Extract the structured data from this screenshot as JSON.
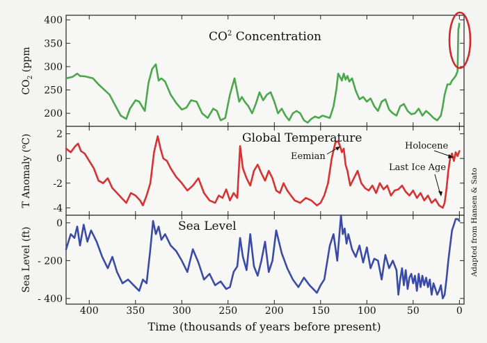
{
  "chart_data": {
    "type": "line",
    "xlabel": "Time (thousands of years before present)",
    "x_ticks": [
      400,
      350,
      300,
      250,
      200,
      150,
      100,
      50,
      0
    ],
    "xlim": [
      425,
      -5
    ],
    "credit": "Adapted from Hansen & Sato",
    "panels": [
      {
        "name": "co2",
        "title_main": "CO",
        "title_sup": "2",
        "title_rest": " Concentration",
        "ylabel_main": "CO",
        "ylabel_sub": "2",
        "ylabel_rest": " (ppm",
        "ylim": [
          172,
          410
        ],
        "y_ticks": [
          200,
          250,
          300,
          350,
          400
        ],
        "y_tick_labels": [
          "200",
          "250",
          "300",
          "350",
          "400"
        ],
        "color": "#4aa84a",
        "x": [
          425,
          418,
          413,
          410,
          404,
          396,
          390,
          384,
          378,
          374,
          366,
          360,
          356,
          350,
          346,
          340,
          336,
          332,
          328,
          325,
          322,
          318,
          312,
          306,
          300,
          295,
          290,
          284,
          278,
          272,
          266,
          262,
          258,
          253,
          248,
          243,
          238,
          235,
          232,
          228,
          224,
          220,
          216,
          212,
          208,
          204,
          200,
          196,
          192,
          188,
          184,
          180,
          176,
          172,
          168,
          164,
          160,
          156,
          152,
          148,
          140,
          136,
          133,
          131,
          129,
          127,
          125,
          123,
          121,
          119,
          116,
          112,
          108,
          104,
          100,
          96,
          92,
          88,
          84,
          80,
          76,
          72,
          68,
          64,
          60,
          56,
          52,
          48,
          44,
          40,
          36,
          32,
          28,
          24,
          20,
          18,
          16,
          13,
          10,
          8,
          6,
          4,
          2,
          1.2,
          0.6,
          0.2
        ],
        "y": [
          275,
          278,
          285,
          280,
          279,
          275,
          262,
          251,
          240,
          225,
          195,
          188,
          210,
          228,
          225,
          205,
          265,
          295,
          305,
          270,
          275,
          268,
          240,
          222,
          208,
          212,
          228,
          225,
          200,
          190,
          210,
          205,
          185,
          190,
          240,
          275,
          225,
          235,
          225,
          215,
          200,
          220,
          245,
          228,
          240,
          245,
          225,
          200,
          210,
          195,
          185,
          200,
          205,
          200,
          185,
          180,
          188,
          193,
          190,
          195,
          190,
          215,
          250,
          285,
          278,
          270,
          285,
          272,
          280,
          268,
          275,
          248,
          230,
          235,
          225,
          232,
          215,
          205,
          225,
          230,
          208,
          200,
          195,
          215,
          220,
          205,
          198,
          200,
          210,
          195,
          205,
          198,
          190,
          185,
          195,
          215,
          240,
          262,
          262,
          270,
          275,
          280,
          290,
          380,
          385,
          392
        ]
      },
      {
        "name": "temperature",
        "title": "Global Temperature",
        "ylabel_main": "T Anomaly (",
        "ylabel_sup": "o",
        "ylabel_rest": "C)",
        "ylim": [
          -4.6,
          2.6
        ],
        "y_ticks": [
          -4,
          -2,
          0,
          2
        ],
        "y_tick_labels": [
          "-4",
          "-2",
          "0",
          "2"
        ],
        "color": "#d93030",
        "annotations": [
          "Eemian",
          "Holocene",
          "Last Ice Age"
        ],
        "x": [
          425,
          420,
          415,
          412,
          409,
          405,
          400,
          395,
          390,
          385,
          380,
          375,
          370,
          365,
          360,
          355,
          350,
          345,
          342,
          338,
          334,
          330,
          326,
          323,
          320,
          316,
          312,
          306,
          300,
          294,
          288,
          282,
          276,
          270,
          264,
          260,
          256,
          252,
          248,
          244,
          240,
          237,
          234,
          230,
          226,
          222,
          218,
          214,
          210,
          206,
          202,
          198,
          194,
          190,
          186,
          182,
          178,
          172,
          166,
          160,
          154,
          150,
          146,
          142,
          138,
          134,
          131,
          129,
          127,
          125,
          123,
          121,
          118,
          114,
          110,
          106,
          102,
          98,
          94,
          90,
          86,
          82,
          78,
          74,
          70,
          66,
          62,
          58,
          54,
          50,
          46,
          42,
          38,
          34,
          30,
          26,
          22,
          18,
          16,
          14,
          12,
          10,
          8,
          6,
          4,
          2,
          0
        ],
        "y": [
          0.8,
          0.5,
          1.0,
          1.2,
          0.6,
          0.4,
          -0.2,
          -0.8,
          -1.8,
          -2.0,
          -1.6,
          -2.4,
          -2.8,
          -3.2,
          -3.6,
          -2.8,
          -3.0,
          -3.4,
          -3.8,
          -3.0,
          -2.0,
          0.5,
          1.8,
          0.8,
          0.0,
          -0.2,
          -0.8,
          -1.5,
          -2.0,
          -2.6,
          -2.2,
          -1.6,
          -2.8,
          -3.4,
          -3.6,
          -3.0,
          -3.2,
          -2.5,
          -3.4,
          -2.8,
          -3.2,
          1.0,
          -0.8,
          -1.6,
          -2.2,
          -1.0,
          -0.5,
          -1.2,
          -1.8,
          -1.0,
          -1.6,
          -2.6,
          -2.8,
          -2.0,
          -2.6,
          -3.0,
          -3.4,
          -3.6,
          -3.2,
          -3.4,
          -3.8,
          -3.6,
          -3.0,
          -2.0,
          0.0,
          1.3,
          1.4,
          1.0,
          0.5,
          0.8,
          -0.5,
          -1.0,
          -2.2,
          -1.6,
          -1.0,
          -2.0,
          -2.4,
          -2.6,
          -2.2,
          -2.8,
          -2.0,
          -2.5,
          -2.2,
          -3.0,
          -2.6,
          -2.5,
          -2.2,
          -2.7,
          -3.0,
          -2.6,
          -3.2,
          -2.8,
          -3.4,
          -3.0,
          -3.6,
          -3.3,
          -3.8,
          -4.0,
          -3.6,
          -2.5,
          -1.0,
          0.0,
          0.4,
          -0.2,
          0.5,
          0.2,
          0.6
        ]
      },
      {
        "name": "sea_level",
        "title": "Sea Level",
        "ylabel_main": "Sea Level (ft)",
        "ylim": [
          -430,
          40
        ],
        "y_ticks": [
          -400,
          -200,
          0
        ],
        "y_tick_labels": [
          "- 400",
          "- 200",
          "0"
        ],
        "color": "#3a4aa8",
        "x": [
          425,
          420,
          416,
          413,
          410,
          406,
          402,
          398,
          392,
          386,
          380,
          375,
          370,
          364,
          358,
          352,
          346,
          342,
          338,
          334,
          331,
          328,
          325,
          322,
          318,
          312,
          306,
          300,
          294,
          288,
          282,
          276,
          270,
          264,
          258,
          252,
          248,
          244,
          240,
          237,
          234,
          230,
          226,
          222,
          218,
          214,
          210,
          206,
          202,
          198,
          192,
          186,
          180,
          174,
          168,
          162,
          158,
          154,
          150,
          146,
          140,
          136,
          132,
          128,
          126,
          124,
          122,
          120,
          116,
          112,
          108,
          104,
          100,
          96,
          92,
          88,
          84,
          80,
          76,
          72,
          68,
          66,
          64,
          62,
          60,
          58,
          56,
          54,
          52,
          50,
          48,
          46,
          44,
          42,
          40,
          38,
          36,
          34,
          32,
          30,
          28,
          26,
          24,
          22,
          20,
          18,
          16,
          14,
          12,
          10,
          8,
          6,
          4,
          2,
          0
        ],
        "y": [
          -140,
          -60,
          -80,
          -20,
          -120,
          -10,
          -100,
          -40,
          -100,
          -180,
          -240,
          -180,
          -260,
          -320,
          -300,
          -330,
          -360,
          -300,
          -320,
          -140,
          10,
          -60,
          -20,
          -90,
          -60,
          -120,
          -150,
          -200,
          -260,
          -140,
          -210,
          -300,
          -270,
          -330,
          -310,
          -350,
          -340,
          -260,
          -230,
          -80,
          -180,
          -250,
          -60,
          -230,
          -280,
          -200,
          -100,
          -260,
          -200,
          -40,
          -160,
          -240,
          -300,
          -340,
          -290,
          -330,
          -350,
          -370,
          -330,
          -300,
          -120,
          -60,
          -200,
          40,
          -60,
          -30,
          -110,
          -60,
          -140,
          -180,
          -120,
          -210,
          -130,
          -240,
          -190,
          -200,
          -300,
          -170,
          -240,
          -200,
          -250,
          -380,
          -300,
          -240,
          -330,
          -250,
          -350,
          -290,
          -270,
          -320,
          -280,
          -360,
          -270,
          -340,
          -280,
          -330,
          -290,
          -340,
          -300,
          -380,
          -320,
          -350,
          -380,
          -360,
          -330,
          -400,
          -380,
          -300,
          -200,
          -120,
          -40,
          -10,
          20,
          20,
          10
        ]
      }
    ]
  }
}
